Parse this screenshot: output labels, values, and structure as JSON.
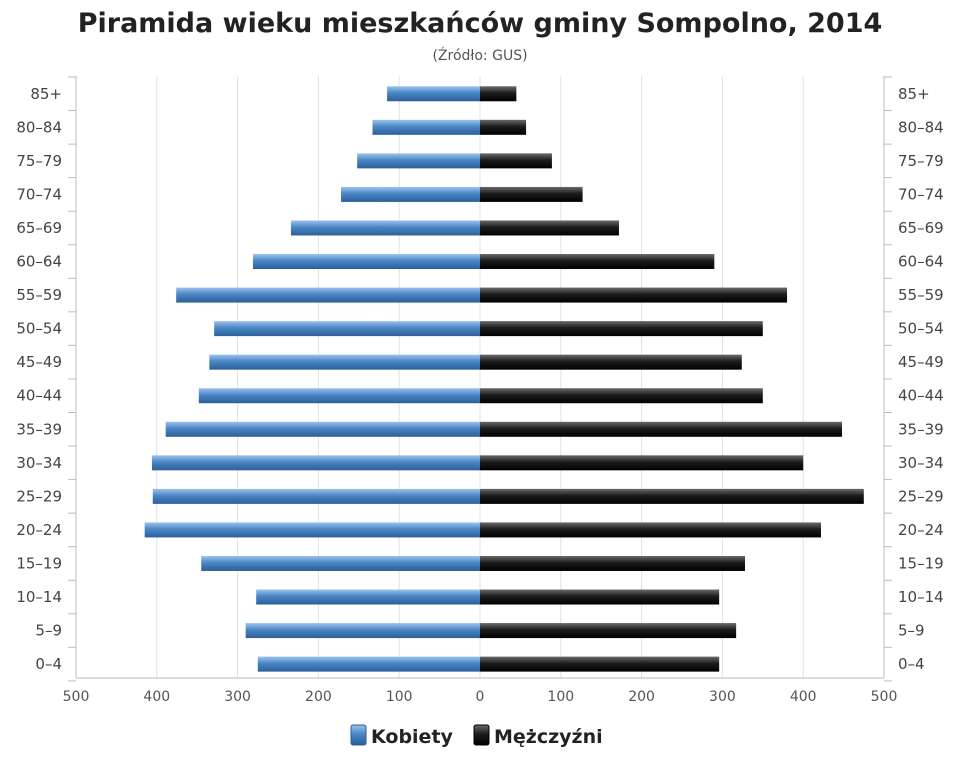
{
  "chart_data": {
    "type": "bar",
    "orientation": "horizontal",
    "layout": "population-pyramid",
    "title": "Piramida wieku mieszkańców gminy Sompolno, 2014",
    "subtitle": "(Źródło: GUS)",
    "categories": [
      "85+",
      "80–84",
      "75–79",
      "70–74",
      "65–69",
      "60–64",
      "55–59",
      "50–54",
      "45–49",
      "40–44",
      "35–39",
      "30–34",
      "25–29",
      "20–24",
      "15–19",
      "10–14",
      "5–9",
      "0–4"
    ],
    "series": [
      {
        "name": "Kobiety",
        "color": "#4a86c5",
        "values": [
          115,
          133,
          152,
          172,
          234,
          281,
          376,
          329,
          335,
          348,
          389,
          406,
          405,
          415,
          345,
          277,
          290,
          275
        ]
      },
      {
        "name": "Mężczyźni",
        "color": "#1c1c1c",
        "values": [
          45,
          57,
          89,
          127,
          172,
          290,
          380,
          350,
          324,
          350,
          448,
          400,
          475,
          422,
          328,
          296,
          317,
          296
        ]
      }
    ],
    "x_ticks": [
      "500",
      "400",
      "300",
      "200",
      "100",
      "0",
      "100",
      "200",
      "300",
      "400",
      "500"
    ],
    "xlim": [
      -500,
      500
    ],
    "grid": true,
    "legend_position": "bottom"
  }
}
